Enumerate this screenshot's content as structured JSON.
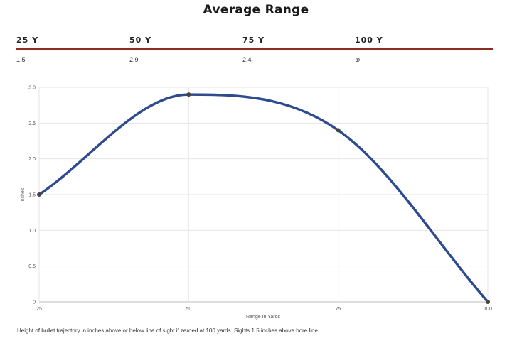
{
  "title": "Average Range",
  "table": {
    "headers": [
      "25 Y",
      "50 Y",
      "75 Y",
      "100 Y"
    ],
    "values": [
      "1.5",
      "2.9",
      "2.4",
      "⊕"
    ]
  },
  "colors": {
    "accent_rule": "#8b2e1f",
    "line": "#2f4b8f",
    "point": "#444444",
    "grid": "#e6e6e6"
  },
  "chart_data": {
    "type": "line",
    "title": "",
    "xlabel": "Range In Yards",
    "ylabel": "Inches",
    "x": [
      25,
      50,
      75,
      100
    ],
    "series": [
      {
        "values": [
          1.5,
          2.9,
          2.4,
          0
        ]
      }
    ],
    "xlim": [
      25,
      100
    ],
    "ylim": [
      0,
      3
    ],
    "xticks": [
      "25",
      "50",
      "75",
      "100"
    ],
    "yticks": [
      "0",
      "0.5",
      "1.0",
      "1.5",
      "2.0",
      "2.5",
      "3.0"
    ],
    "grid": true,
    "smooth": true
  },
  "caption": "Height of bullet trajectory in inches above or below line of sight if zeroed at 100 yards. Sights 1.5 inches above bore line."
}
